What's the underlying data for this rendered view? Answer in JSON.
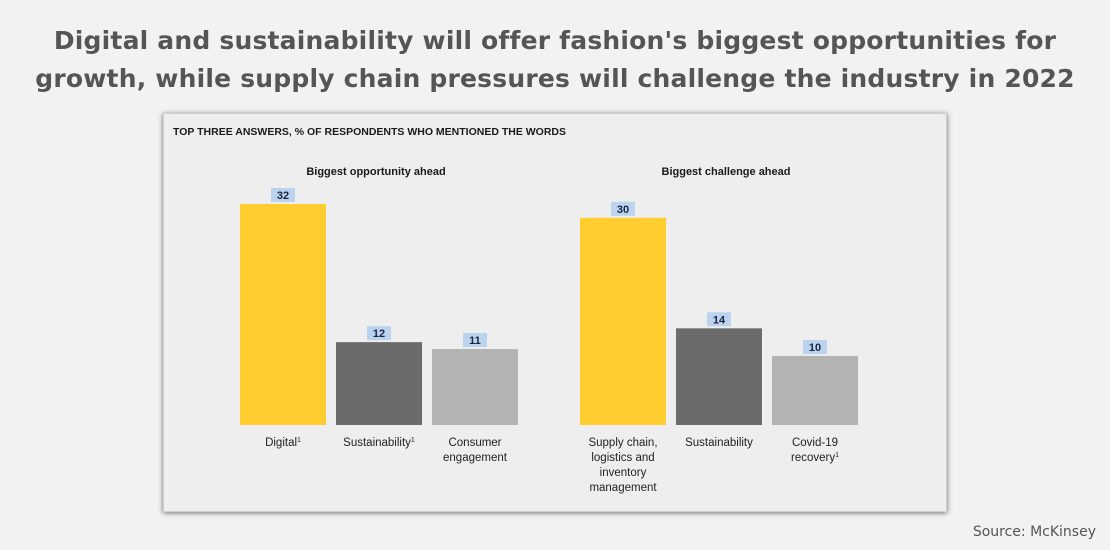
{
  "headline": {
    "line1": "Digital and sustainability will offer fashion's biggest opportunities for",
    "line2": "growth, while supply chain pressures will challenge the industry in 2022"
  },
  "source": "Source: McKinsey",
  "colors": {
    "page_background": "#f2f2f2",
    "panel_background": "#eeeeee",
    "yellow": "#ffcd2f",
    "dark_gray": "#6b6b6b",
    "light_gray": "#b3b3b3",
    "highlight": "#bcd3ef"
  },
  "chart_data": [
    {
      "type": "bar",
      "subtitle": "TOP THREE ANSWERS, % OF RESPONDENTS WHO MENTIONED THE WORDS",
      "title": "Biggest opportunity ahead",
      "categories": [
        [
          "Digital",
          "1"
        ],
        [
          "Sustainability",
          "1"
        ],
        [
          "Consumer",
          "engagement"
        ]
      ],
      "values": [
        32,
        12,
        11
      ],
      "colors": [
        "#ffcd2f",
        "#6b6b6b",
        "#b3b3b3"
      ],
      "ylim": [
        0,
        32
      ]
    },
    {
      "type": "bar",
      "title": "Biggest challenge ahead",
      "categories": [
        [
          "Supply chain,",
          "logistics and",
          "inventory",
          "management"
        ],
        [
          "Sustainability"
        ],
        [
          "Covid-19",
          "recovery",
          "1"
        ]
      ],
      "values": [
        30,
        14,
        10
      ],
      "colors": [
        "#ffcd2f",
        "#6b6b6b",
        "#b3b3b3"
      ],
      "ylim": [
        0,
        32
      ]
    }
  ]
}
